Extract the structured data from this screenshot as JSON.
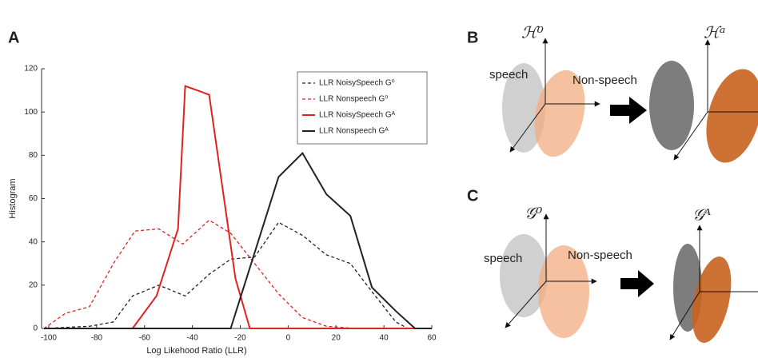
{
  "chart_data": {
    "type": "line",
    "panel_label": "A",
    "xlabel": "Log Likehood Ratio (LLR)",
    "ylabel": "Histogram",
    "xlim": [
      -103,
      60
    ],
    "xticks": [
      -100,
      -80,
      -60,
      -40,
      -20,
      0,
      20,
      40,
      60
    ],
    "ylim": [
      0,
      120
    ],
    "yticks": [
      0,
      20,
      40,
      60,
      80,
      100,
      120
    ],
    "legend": "upper-right",
    "series": [
      {
        "name": "LLR NoisySpeech G⁰",
        "color": "#222222",
        "dash": true,
        "x": [
          -102,
          -83,
          -73,
          -65,
          -54,
          -43,
          -33,
          -24,
          -14,
          -4,
          6,
          16,
          26,
          35,
          45,
          50,
          60
        ],
        "values": [
          0,
          1,
          3,
          15,
          20,
          15,
          25,
          32,
          33,
          49,
          43,
          34,
          30,
          17,
          3,
          0,
          0
        ]
      },
      {
        "name": "LLR Nonspeech G⁰",
        "color": "#e0231f",
        "dash": true,
        "x": [
          -102,
          -93,
          -83,
          -73,
          -64,
          -54,
          -44,
          -33,
          -24,
          -14,
          -4,
          6,
          16,
          28,
          60
        ],
        "values": [
          0,
          7,
          10,
          30,
          45,
          46,
          39,
          50,
          44,
          30,
          16,
          5,
          1,
          0,
          0
        ]
      },
      {
        "name": "LLR NoisySpeech Gᴬ",
        "color": "#e0231f",
        "dash": false,
        "x": [
          -102,
          -65,
          -55,
          -46,
          -43,
          -33,
          -22,
          -16,
          60
        ],
        "values": [
          0,
          0,
          15,
          46,
          112,
          108,
          23,
          0,
          0
        ]
      },
      {
        "name": "LLR Nonspeech Gᴬ",
        "color": "#222222",
        "dash": false,
        "x": [
          -102,
          -24,
          -4,
          6,
          16,
          26,
          35,
          45,
          53,
          60
        ],
        "values": [
          0,
          0,
          70,
          81,
          62,
          52,
          19,
          8,
          0,
          0
        ]
      }
    ]
  },
  "diagrams": [
    {
      "panel_label": "B",
      "left_space": "ℋ⁰",
      "right_space": "ℋᵃ",
      "left_class": "speech",
      "right_class": "Non-speech"
    },
    {
      "panel_label": "C",
      "left_space": "𝒢⁰",
      "right_space": "𝒢ᴬ",
      "left_class": "speech",
      "right_class": "Non-speech"
    }
  ]
}
